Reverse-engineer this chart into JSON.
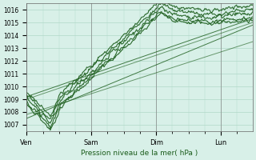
{
  "title": "",
  "xlabel": "Pression niveau de la mer( hPa )",
  "xlabels": [
    "Ven",
    "Sam",
    "Dim",
    "Lun"
  ],
  "xtick_positions": [
    0,
    96,
    192,
    288
  ],
  "ylim": [
    1006.5,
    1016.5
  ],
  "yticks": [
    1007,
    1008,
    1009,
    1010,
    1011,
    1012,
    1013,
    1014,
    1015,
    1016
  ],
  "bg_color": "#d8f0e8",
  "grid_color": "#b0d8c8",
  "line_color": "#1a5c1a",
  "total_points": 336,
  "line_width": 0.8
}
